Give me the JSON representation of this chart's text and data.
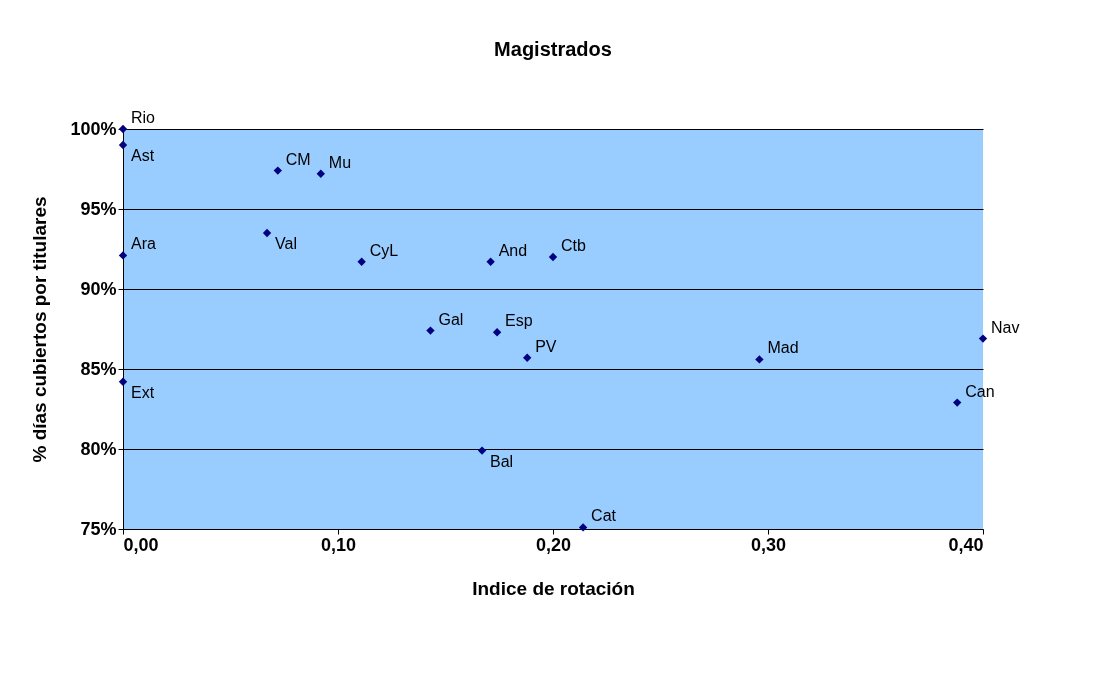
{
  "chart_data": {
    "type": "scatter",
    "title": "Magistrados",
    "xlabel": "Indice de rotación",
    "ylabel": "% días cubiertos por titulares",
    "x": [
      0,
      0,
      0.072,
      0.092,
      0.067,
      0,
      0.111,
      0.171,
      0.2,
      0.143,
      0.174,
      0.188,
      0.4,
      0.296,
      0.388,
      0,
      0.167,
      0.214
    ],
    "series": [
      {
        "color": "#000080",
        "values": [
          100,
          99,
          97.4,
          97.2,
          93.5,
          92.1,
          91.7,
          91.7,
          92.0,
          87.4,
          87.3,
          85.7,
          86.9,
          85.6,
          82.9,
          84.2,
          79.9,
          75.1
        ]
      }
    ],
    "marker": "diamond",
    "grid": "y",
    "xlim": [
      0,
      0.4
    ],
    "ylim": [
      75,
      100
    ],
    "xticks": [
      {
        "value": 0,
        "label": "0,00"
      },
      {
        "value": 0.1,
        "label": "0,10"
      },
      {
        "value": 0.2,
        "label": "0,20"
      },
      {
        "value": 0.3,
        "label": "0,30"
      },
      {
        "value": 0.4,
        "label": "0,40"
      }
    ],
    "yticks": [
      {
        "value": 75,
        "label": "75%"
      },
      {
        "value": 80,
        "label": "80%"
      },
      {
        "value": 85,
        "label": "85%"
      },
      {
        "value": 90,
        "label": "90%"
      },
      {
        "value": 95,
        "label": "95%"
      },
      {
        "value": 100,
        "label": "100%"
      }
    ],
    "annotations": [
      {
        "text": "Rio",
        "x": 0,
        "y": 100
      },
      {
        "text": "Ast",
        "x": 0,
        "y": 99
      },
      {
        "text": "CM",
        "x": 0.072,
        "y": 97.4
      },
      {
        "text": "Mu",
        "x": 0.092,
        "y": 97.2
      },
      {
        "text": "Val",
        "x": 0.067,
        "y": 93.5
      },
      {
        "text": "Ara",
        "x": 0,
        "y": 92.1
      },
      {
        "text": "CyL",
        "x": 0.111,
        "y": 91.7
      },
      {
        "text": "And",
        "x": 0.171,
        "y": 91.7
      },
      {
        "text": "Ctb",
        "x": 0.2,
        "y": 92.0
      },
      {
        "text": "Gal",
        "x": 0.143,
        "y": 87.4
      },
      {
        "text": "Esp",
        "x": 0.174,
        "y": 87.3
      },
      {
        "text": "PV",
        "x": 0.188,
        "y": 85.7
      },
      {
        "text": "Nav",
        "x": 0.4,
        "y": 86.9
      },
      {
        "text": "Mad",
        "x": 0.296,
        "y": 85.6
      },
      {
        "text": "Can",
        "x": 0.388,
        "y": 82.9
      },
      {
        "text": "Ext",
        "x": 0,
        "y": 84.2
      },
      {
        "text": "Bal",
        "x": 0.167,
        "y": 79.9
      },
      {
        "text": "Cat",
        "x": 0.214,
        "y": 75.1
      }
    ]
  }
}
